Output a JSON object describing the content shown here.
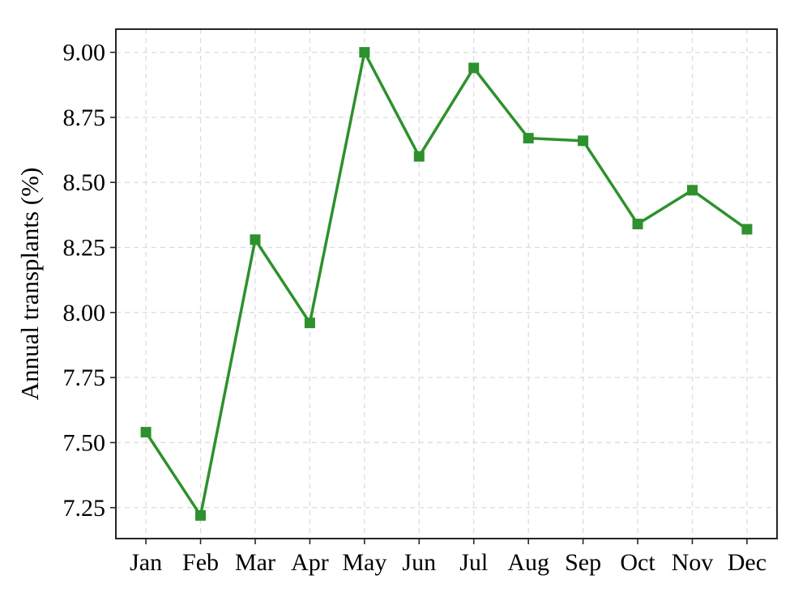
{
  "figure": {
    "background": "#ffffff"
  },
  "chart_data": {
    "type": "line",
    "title": "",
    "xlabel": "",
    "ylabel": "Annual transplants (%)",
    "categories": [
      "Jan",
      "Feb",
      "Mar",
      "Apr",
      "May",
      "Jun",
      "Jul",
      "Aug",
      "Sep",
      "Oct",
      "Nov",
      "Dec"
    ],
    "series": [
      {
        "name": "Annual transplants (%)",
        "marker": "square",
        "color": "#2d912d",
        "values": [
          7.54,
          7.22,
          8.28,
          7.96,
          9.0,
          8.6,
          8.94,
          8.67,
          8.66,
          8.34,
          8.47,
          8.32
        ]
      }
    ],
    "yticks": [
      7.25,
      7.5,
      7.75,
      8.0,
      8.25,
      8.5,
      8.75,
      9.0
    ],
    "ytick_labels": [
      "7.25",
      "7.50",
      "7.75",
      "8.00",
      "8.25",
      "8.50",
      "8.75",
      "9.00"
    ],
    "ylim": [
      7.131,
      9.089
    ],
    "xlim": [
      -0.55,
      11.55
    ],
    "grid": "both",
    "grid_style": "dashed",
    "legend": "none",
    "colors": {
      "grid": "#dcdcdc",
      "axis": "#262626",
      "text": "#000000",
      "background": "#ffffff"
    }
  }
}
